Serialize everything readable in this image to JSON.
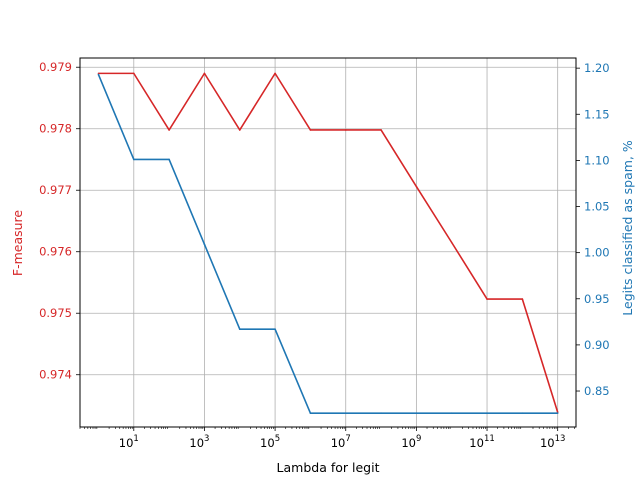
{
  "chart_data": {
    "type": "line",
    "xlabel": "Lambda for legit",
    "ylabel_left": "F-measure",
    "ylabel_right": "Legits classified as spam, %",
    "x_scale": "log",
    "xlim": [
      0.3,
      33000000000000
    ],
    "ylim_left": [
      0.97315,
      0.97915
    ],
    "ylim_right": [
      0.811,
      1.211
    ],
    "grid": true,
    "x_ticks": [
      {
        "value": 10,
        "base": "10",
        "exp": "1"
      },
      {
        "value": 1000,
        "base": "10",
        "exp": "3"
      },
      {
        "value": 100000,
        "base": "10",
        "exp": "5"
      },
      {
        "value": 10000000,
        "base": "10",
        "exp": "7"
      },
      {
        "value": 1000000000,
        "base": "10",
        "exp": "9"
      },
      {
        "value": 100000000000,
        "base": "10",
        "exp": "11"
      },
      {
        "value": 10000000000000,
        "base": "10",
        "exp": "13"
      }
    ],
    "yticks_left": [
      "0.974",
      "0.975",
      "0.976",
      "0.977",
      "0.978",
      "0.979"
    ],
    "yticks_right": [
      "0.85",
      "0.90",
      "0.95",
      "1.00",
      "1.05",
      "1.10",
      "1.15",
      "1.20"
    ],
    "x": [
      1,
      10,
      100,
      1000,
      10000,
      100000,
      1000000,
      10000000,
      100000000,
      1000000000,
      10000000000,
      100000000000,
      1000000000000,
      10000000000000
    ],
    "series": [
      {
        "axis": "left",
        "color": "#d62728",
        "values": [
          0.9789,
          0.9789,
          0.97798,
          0.9789,
          0.97798,
          0.9789,
          0.97798,
          0.97798,
          0.97798,
          0.97706,
          0.97615,
          0.97523,
          0.97523,
          0.97339
        ]
      },
      {
        "axis": "right",
        "color": "#1f77b4",
        "values": [
          1.193,
          1.101,
          1.101,
          1.009,
          0.917,
          0.917,
          0.826,
          0.826,
          0.826,
          0.826,
          0.826,
          0.826,
          0.826,
          0.826
        ]
      }
    ]
  }
}
